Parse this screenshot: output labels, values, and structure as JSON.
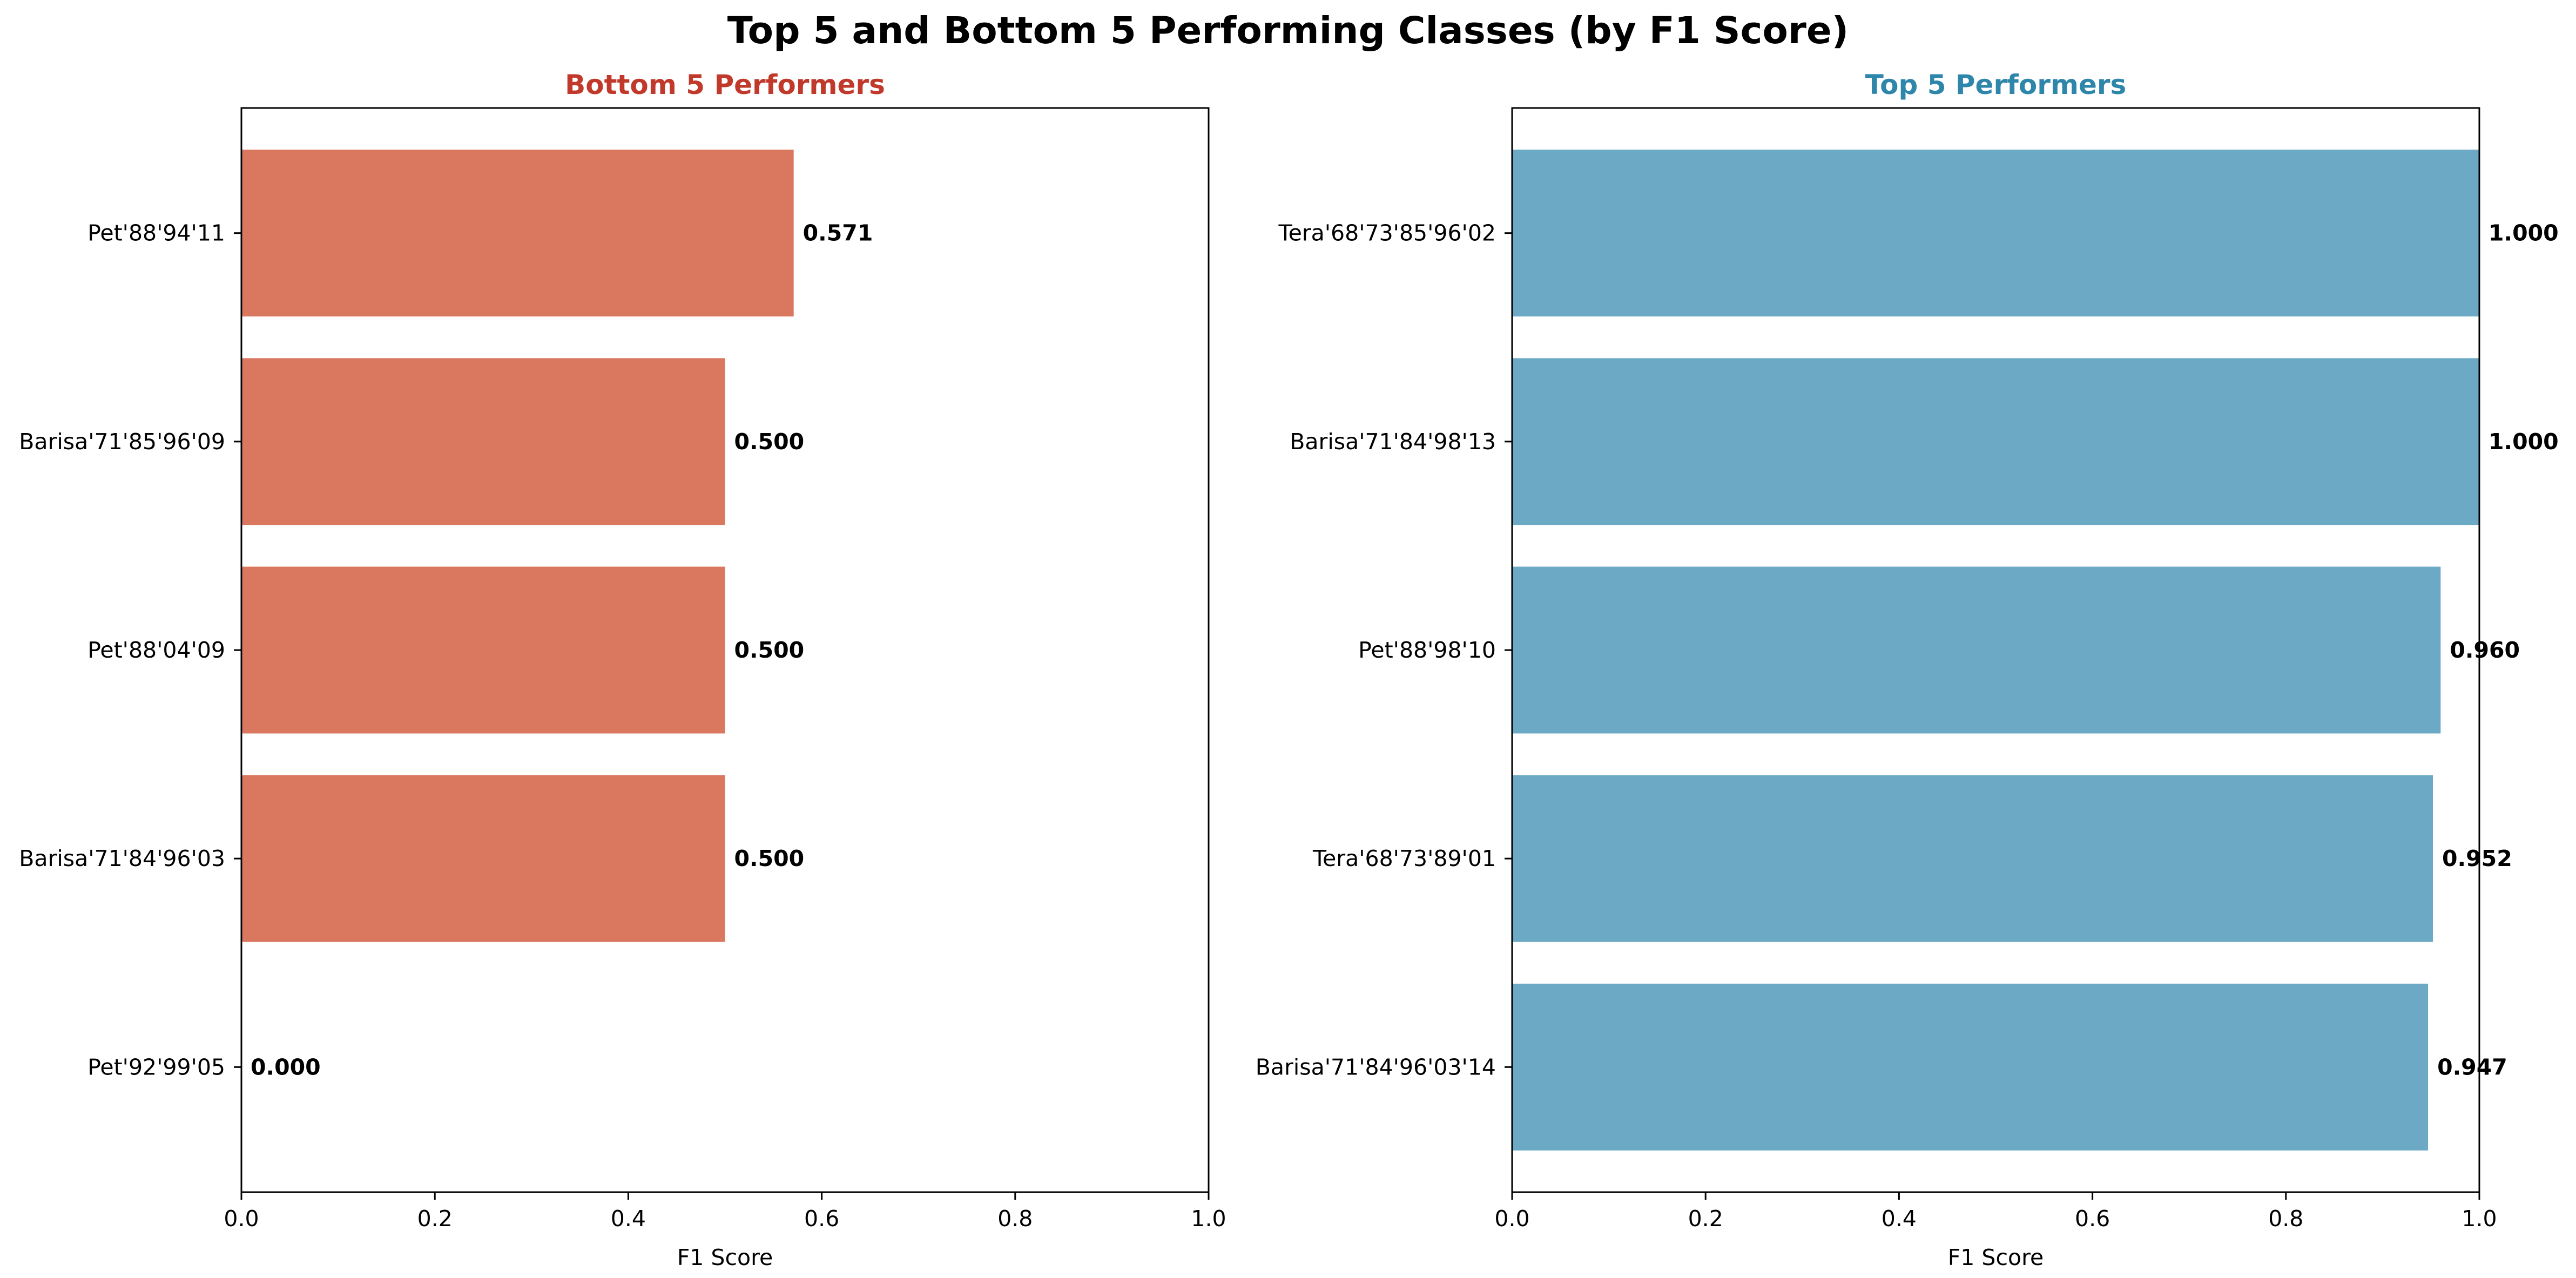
{
  "suptitle": "Top 5 and Bottom 5 Performing Classes (by F1 Score)",
  "chart_data": [
    {
      "type": "bar",
      "orientation": "horizontal",
      "title": "Bottom 5 Performers",
      "title_color": "#c0392b",
      "bar_color": "#d9775f",
      "xlabel": "F1 Score",
      "ylabel": "",
      "xlim": [
        0,
        1
      ],
      "xticks": [
        "0.0",
        "0.2",
        "0.4",
        "0.6",
        "0.8",
        "1.0"
      ],
      "categories": [
        "Pet'88'94'11",
        "Barisa'71'85'96'09",
        "Pet'88'04'09",
        "Barisa'71'84'96'03",
        "Pet'92'99'05"
      ],
      "values": [
        0.571,
        0.5,
        0.5,
        0.5,
        0.0
      ],
      "value_labels": [
        "0.571",
        "0.500",
        "0.500",
        "0.500",
        "0.000"
      ],
      "grid": false
    },
    {
      "type": "bar",
      "orientation": "horizontal",
      "title": "Top 5 Performers",
      "title_color": "#2e86ab",
      "bar_color": "#6ca9c4",
      "xlabel": "F1 Score",
      "ylabel": "",
      "xlim": [
        0,
        1
      ],
      "xticks": [
        "0.0",
        "0.2",
        "0.4",
        "0.6",
        "0.8",
        "1.0"
      ],
      "categories": [
        "Tera'68'73'85'96'02",
        "Barisa'71'84'98'13",
        "Pet'88'98'10",
        "Tera'68'73'89'01",
        "Barisa'71'84'96'03'14"
      ],
      "values": [
        1.0,
        1.0,
        0.96,
        0.952,
        0.947
      ],
      "value_labels": [
        "1.000",
        "1.000",
        "0.960",
        "0.952",
        "0.947"
      ],
      "grid": false
    }
  ]
}
